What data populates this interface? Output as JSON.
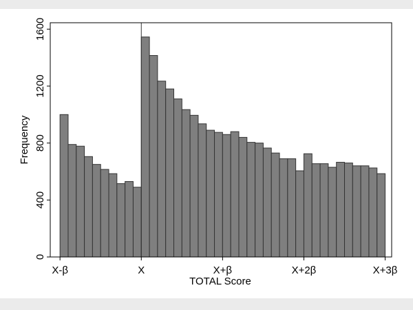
{
  "chart_data": {
    "type": "histogram",
    "xlabel": "TOTAL Score",
    "ylabel": "Frequency",
    "bins": [
      -1,
      -0.9,
      -0.8,
      -0.7,
      -0.6,
      -0.5,
      -0.4,
      -0.3,
      -0.2,
      -0.1,
      0,
      0.1,
      0.2,
      0.3,
      0.4,
      0.5,
      0.6,
      0.7,
      0.8,
      0.9,
      1,
      1.1,
      1.2,
      1.3,
      1.4,
      1.5,
      1.6,
      1.7,
      1.8,
      1.9,
      2,
      2.1,
      2.2,
      2.3,
      2.4,
      2.5,
      2.6,
      2.7,
      2.8,
      2.9,
      3
    ],
    "values": [
      1000,
      790,
      778,
      705,
      650,
      615,
      585,
      515,
      530,
      490,
      1545,
      1415,
      1235,
      1180,
      1110,
      1035,
      995,
      935,
      890,
      875,
      860,
      880,
      840,
      805,
      800,
      765,
      730,
      690,
      690,
      605,
      725,
      655,
      655,
      630,
      665,
      660,
      640,
      640,
      625,
      585
    ],
    "color": "#7f7f7f",
    "xlim": [
      -1.12,
      3.08
    ],
    "ylim": [
      0,
      1645
    ],
    "xticks": [
      {
        "value": -1,
        "label": "X-β"
      },
      {
        "value": 0,
        "label": "X"
      },
      {
        "value": 1,
        "label": "X+β"
      },
      {
        "value": 2,
        "label": "X+2β"
      },
      {
        "value": 3,
        "label": "X+3β"
      }
    ],
    "yticks": [
      0,
      400,
      800,
      1200,
      1600
    ],
    "xline": 0
  }
}
